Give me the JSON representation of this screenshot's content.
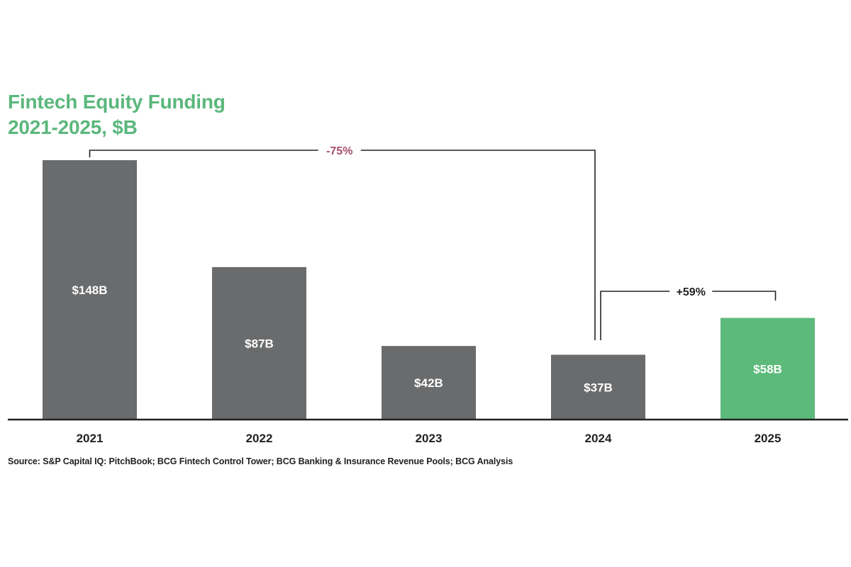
{
  "colors": {
    "title": "#5bb77c",
    "bar_default": "#6a6b6d",
    "bar_highlight": "#5cba7a",
    "decline_label": "#a34d6e",
    "axis": "#222222",
    "bracket": "#222222",
    "bar_label": "#ffffff"
  },
  "chart_data": {
    "type": "bar",
    "title": "Fintech Equity Funding",
    "subtitle": "2021-2025, $B",
    "categories": [
      "2021",
      "2022",
      "2023",
      "2024",
      "2025"
    ],
    "values": [
      148,
      87,
      42,
      37,
      58
    ],
    "value_labels": [
      "$148B",
      "$87B",
      "$42B",
      "$37B",
      "$58B"
    ],
    "highlight": [
      false,
      false,
      false,
      false,
      true
    ],
    "xlabel": "",
    "ylabel": "",
    "ylim": [
      0,
      150
    ],
    "grid": false,
    "annotations": [
      {
        "id": "decline",
        "from": "2021",
        "to": "2024",
        "text": "-75%"
      },
      {
        "id": "growth",
        "from": "2024",
        "to": "2025",
        "text": "+59%"
      }
    ]
  },
  "source": "Source: S&P Capital IQ: PitchBook; BCG Fintech Control Tower; BCG Banking & Insurance Revenue Pools; BCG Analysis"
}
